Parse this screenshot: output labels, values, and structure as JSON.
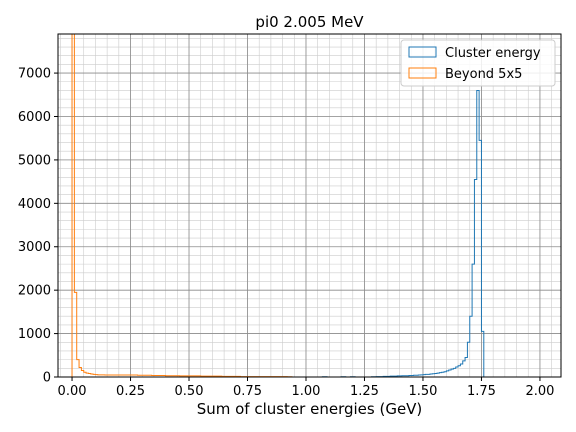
{
  "chart_data": {
    "type": "histogram-step",
    "title": "pi0 2.005 MeV",
    "xlabel": "Sum of cluster energies (GeV)",
    "ylabel": "",
    "xlim": [
      -0.06,
      2.09
    ],
    "ylim": [
      0,
      7900
    ],
    "xticks": [
      0.0,
      0.25,
      0.5,
      0.75,
      1.0,
      1.25,
      1.5,
      1.75,
      2.0
    ],
    "xtick_labels": [
      "0.00",
      "0.25",
      "0.50",
      "0.75",
      "1.00",
      "1.25",
      "1.50",
      "1.75",
      "2.00"
    ],
    "yticks": [
      0,
      1000,
      2000,
      3000,
      4000,
      5000,
      6000,
      7000
    ],
    "ytick_labels": [
      "0",
      "1000",
      "2000",
      "3000",
      "4000",
      "5000",
      "6000",
      "7000"
    ],
    "grid": "major-and-minor",
    "legend_position": "top-right",
    "bin_width": 0.01,
    "series": [
      {
        "name": "Cluster energy",
        "color": "#1f77b4",
        "bin_edges_start": 1.0,
        "counts": [
          0,
          0,
          0,
          0,
          0,
          0,
          0,
          5,
          5,
          0,
          0,
          0,
          0,
          0,
          0,
          5,
          5,
          0,
          0,
          5,
          5,
          0,
          0,
          0,
          0,
          0,
          0,
          0,
          5,
          5,
          10,
          10,
          10,
          15,
          15,
          15,
          20,
          20,
          20,
          25,
          25,
          30,
          30,
          30,
          35,
          35,
          40,
          40,
          45,
          50,
          55,
          60,
          60,
          70,
          75,
          80,
          90,
          100,
          110,
          120,
          140,
          160,
          180,
          200,
          230,
          260,
          300,
          370,
          450,
          800,
          1400,
          2600,
          4550,
          6600,
          5450,
          1050,
          0
        ]
      },
      {
        "name": "Beyond 5x5",
        "color": "#ff7f0e",
        "bin_edges_start": 0.0,
        "counts": [
          10000,
          1950,
          400,
          220,
          150,
          110,
          90,
          80,
          70,
          60,
          55,
          50,
          50,
          50,
          45,
          45,
          45,
          45,
          45,
          45,
          45,
          45,
          45,
          45,
          45,
          45,
          45,
          45,
          40,
          40,
          40,
          40,
          40,
          40,
          35,
          35,
          35,
          35,
          35,
          35,
          30,
          30,
          30,
          30,
          30,
          30,
          25,
          25,
          25,
          25,
          25,
          25,
          25,
          25,
          25,
          20,
          20,
          20,
          20,
          20,
          20,
          20,
          20,
          20,
          15,
          15,
          15,
          15,
          15,
          15,
          15,
          15,
          10,
          10,
          10,
          10,
          10,
          10,
          10,
          10,
          10,
          10,
          10,
          10,
          10,
          10,
          10,
          10,
          10,
          10,
          10,
          10,
          5,
          5,
          0
        ]
      }
    ]
  }
}
